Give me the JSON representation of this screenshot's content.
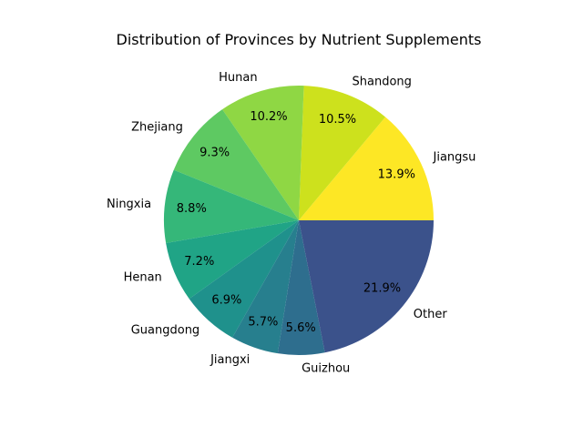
{
  "chart_data": {
    "type": "pie",
    "title": "Distribution of Provinces by Nutrient Supplements",
    "start_angle_deg": 0,
    "direction": "counterclockwise",
    "slices": [
      {
        "label": "Jiangsu",
        "value": 13.9,
        "pct_label": "13.9%",
        "color": "#fde725"
      },
      {
        "label": "Shandong",
        "value": 10.5,
        "pct_label": "10.5%",
        "color": "#cde11d"
      },
      {
        "label": "Hunan",
        "value": 10.2,
        "pct_label": "10.2%",
        "color": "#8fd744"
      },
      {
        "label": "Zhejiang",
        "value": 9.3,
        "pct_label": "9.3%",
        "color": "#5ec962"
      },
      {
        "label": "Ningxia",
        "value": 8.8,
        "pct_label": "8.8%",
        "color": "#35b779"
      },
      {
        "label": "Henan",
        "value": 7.2,
        "pct_label": "7.2%",
        "color": "#20a486"
      },
      {
        "label": "Guangdong",
        "value": 6.9,
        "pct_label": "6.9%",
        "color": "#1f918c"
      },
      {
        "label": "Jiangxi",
        "value": 5.7,
        "pct_label": "5.7%",
        "color": "#277f8e"
      },
      {
        "label": "Guizhou",
        "value": 5.6,
        "pct_label": "5.6%",
        "color": "#2e6e8e"
      },
      {
        "label": "Other",
        "value": 21.9,
        "pct_label": "21.9%",
        "color": "#3b528b"
      }
    ]
  }
}
